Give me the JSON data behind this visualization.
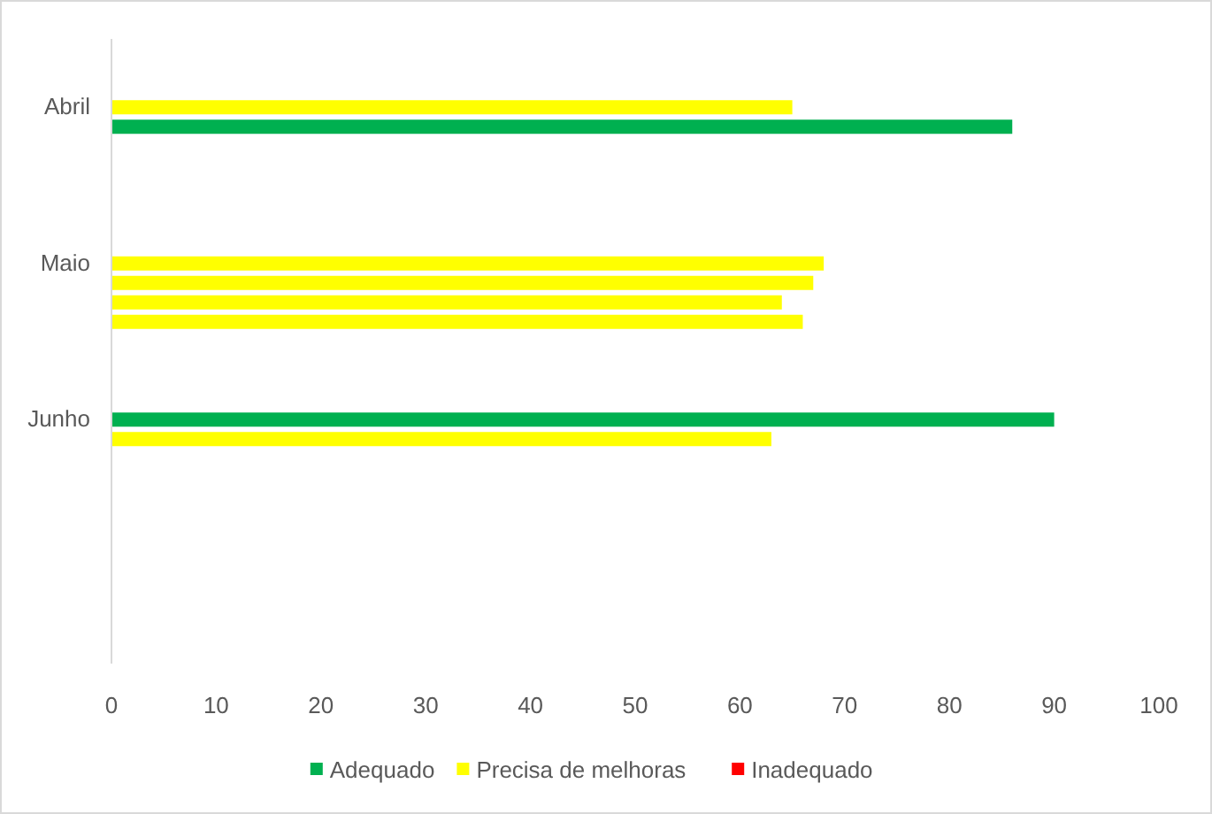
{
  "chart_data": {
    "type": "bar",
    "orientation": "horizontal",
    "categories": [
      "Abril",
      "Maio",
      "Junho",
      null
    ],
    "series": [
      {
        "name": "Adequado",
        "color": "#00b050",
        "values": [
          null,
          null,
          null,
          null
        ]
      },
      {
        "name": "Precisa de melhoras",
        "color": "#ffff00",
        "values": [
          null,
          null,
          null,
          null
        ]
      },
      {
        "values": [
          65,
          68,
          90,
          null
        ],
        "colors": [
          "#ffff00",
          "#ffff00",
          "#00b050",
          null
        ]
      },
      {
        "values": [
          86,
          67,
          63,
          null
        ],
        "colors": [
          "#00b050",
          "#ffff00",
          "#ffff00",
          null
        ]
      },
      {
        "values": [
          null,
          64,
          null,
          null
        ],
        "colors": [
          null,
          "#ffff00",
          null,
          null
        ]
      },
      {
        "values": [
          null,
          66,
          null,
          null
        ],
        "colors": [
          null,
          "#ffff00",
          null,
          null
        ]
      },
      {
        "name": "Inadequado",
        "color": "#ff0000",
        "values": [
          null,
          null,
          null,
          null
        ]
      }
    ],
    "xlim": [
      0,
      100
    ],
    "xticks": [
      0,
      10,
      20,
      30,
      40,
      50,
      60,
      70,
      80,
      90,
      100
    ],
    "legend": "bottom"
  }
}
